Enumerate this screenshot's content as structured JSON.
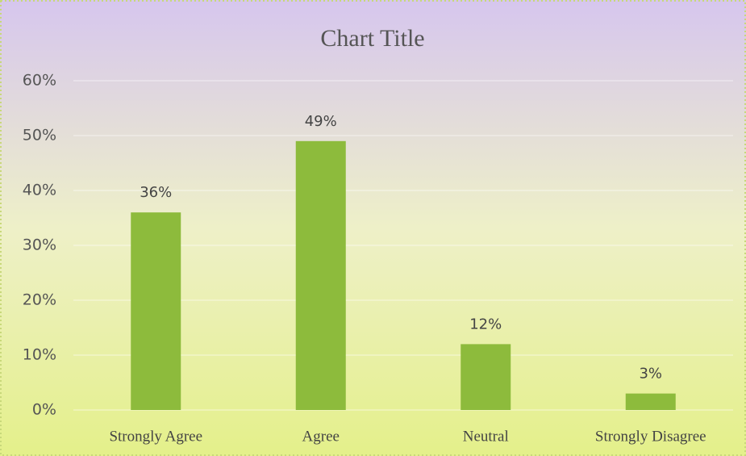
{
  "chart_data": {
    "type": "bar",
    "title": "Chart Title",
    "categories": [
      "Strongly Agree",
      "Agree",
      "Neutral",
      "Strongly Disagree"
    ],
    "values": [
      36,
      49,
      12,
      3
    ],
    "value_labels": [
      "36%",
      "49%",
      "12%",
      "3%"
    ],
    "color": "#8dbb3c",
    "ylim": [
      0,
      60
    ],
    "yticks": [
      {
        "value": 0,
        "label": "0%"
      },
      {
        "value": 10,
        "label": "10%"
      },
      {
        "value": 20,
        "label": "20%"
      },
      {
        "value": 30,
        "label": "30%"
      },
      {
        "value": 40,
        "label": "40%"
      },
      {
        "value": 50,
        "label": "50%"
      },
      {
        "value": 60,
        "label": "60%"
      }
    ],
    "grid": true
  }
}
